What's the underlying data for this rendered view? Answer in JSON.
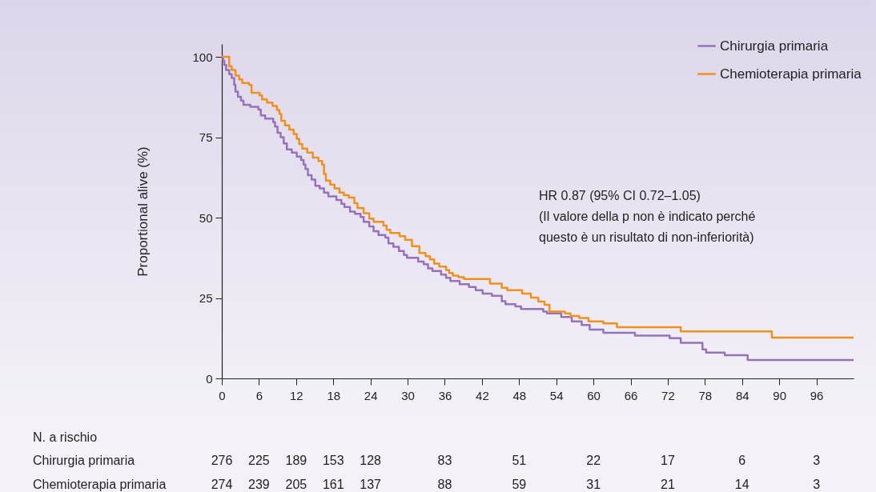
{
  "chart_data": [
    {
      "type": "step",
      "ylabel": "Proportional alive (%)",
      "xlim": [
        0,
        102
      ],
      "xticks": [
        0,
        6,
        12,
        18,
        24,
        30,
        36,
        42,
        48,
        54,
        60,
        66,
        72,
        78,
        84,
        90,
        96
      ],
      "ylim": [
        0,
        104
      ],
      "yticks": [
        0,
        25,
        50,
        75,
        100
      ],
      "legend": "top right",
      "line_style": "solid",
      "annotations": [
        "HR 0.87 (95% CI 0.72–1.05)\n(Il valore della p non è indicato perché\nquesto è un risultato di non-inferiorità)"
      ],
      "series": [
        {
          "name": "Chirurgia primaria",
          "color": "#9673b9",
          "x": [
            0,
            0.2,
            0.4,
            0.7,
            1.2,
            1.6,
            2.0,
            2.2,
            2.6,
            3.1,
            3.5,
            4.6,
            5.9,
            6.3,
            7.0,
            8.3,
            8.6,
            9.0,
            9.5,
            10.0,
            10.5,
            11.3,
            12.1,
            12.8,
            13.2,
            13.5,
            13.9,
            14.5,
            15.1,
            15.8,
            16.5,
            17.2,
            18.5,
            19.3,
            19.8,
            20.7,
            21.5,
            22.4,
            22.9,
            23.8,
            24.5,
            25.3,
            26.4,
            26.9,
            27.7,
            28.6,
            29.4,
            29.9,
            31.7,
            32.6,
            33.3,
            34.0,
            35.4,
            36.2,
            36.9,
            38.4,
            39.9,
            41.0,
            42.1,
            43.6,
            45.2,
            45.8,
            47.4,
            48.3,
            51.9,
            52.5,
            54.8,
            56.5,
            58.1,
            59.4,
            61.6,
            66.7,
            72.3,
            74.1,
            77.6,
            78.2,
            81.2,
            84.9,
            102
          ],
          "values": [
            100,
            98.8,
            97.5,
            95.9,
            94.6,
            93.4,
            91.3,
            89.2,
            87.6,
            86.4,
            85.1,
            84.5,
            83.6,
            81.8,
            80.8,
            79.7,
            78.3,
            76.4,
            75.0,
            73.1,
            71.2,
            70.2,
            69.0,
            67.9,
            66.5,
            65.1,
            63.2,
            61.8,
            59.9,
            59.1,
            57.8,
            56.6,
            55.5,
            54.3,
            53.3,
            51.9,
            51.2,
            50.2,
            48.7,
            47.3,
            45.8,
            44.6,
            43.8,
            42.0,
            40.9,
            39.6,
            38.4,
            37.5,
            36.3,
            35.5,
            34.2,
            33.4,
            32.3,
            31.3,
            30.3,
            29.3,
            28.4,
            27.4,
            26.4,
            25.7,
            24.0,
            23.1,
            22.4,
            21.6,
            20.8,
            20.2,
            19.1,
            17.7,
            16.6,
            15.2,
            14.2,
            13.3,
            12.5,
            11.1,
            9.0,
            8.0,
            7.2,
            5.7,
            5.7
          ]
        },
        {
          "name": "Chemioterapia primaria",
          "color": "#f0901e",
          "x": [
            0,
            1.2,
            1.6,
            2.2,
            2.8,
            3.3,
            4.4,
            4.8,
            6.1,
            6.5,
            7.3,
            8.2,
            8.9,
            9.3,
            9.6,
            10.2,
            10.9,
            11.6,
            12.1,
            12.5,
            13.0,
            13.8,
            14.7,
            15.6,
            16.2,
            16.5,
            16.8,
            17.5,
            18.2,
            19.0,
            19.7,
            20.5,
            21.4,
            21.9,
            22.9,
            23.8,
            24.5,
            26.1,
            26.6,
            27.2,
            28.7,
            29.6,
            30.7,
            31.9,
            32.9,
            33.6,
            34.3,
            35.1,
            36.2,
            36.7,
            37.3,
            38.2,
            39.1,
            43.3,
            45.2,
            46.1,
            48.5,
            49.9,
            51.1,
            52.1,
            52.9,
            55.4,
            56.3,
            57.7,
            59.2,
            61.6,
            63.8,
            74.1,
            88.8,
            102
          ],
          "values": [
            100,
            97.1,
            95.9,
            94.2,
            93.0,
            91.9,
            91.3,
            88.8,
            88.0,
            86.8,
            85.8,
            84.7,
            83.5,
            82.2,
            80.1,
            78.7,
            77.4,
            76.0,
            74.5,
            72.9,
            71.5,
            70.2,
            68.7,
            67.6,
            66.5,
            63.6,
            61.5,
            60.3,
            59.1,
            57.8,
            57.0,
            56.2,
            54.5,
            53.0,
            51.4,
            49.7,
            48.7,
            47.5,
            46.2,
            45.2,
            44.2,
            43.1,
            41.1,
            39.0,
            38.0,
            37.0,
            35.7,
            34.8,
            33.7,
            32.8,
            32.0,
            31.5,
            30.9,
            29.5,
            28.2,
            27.4,
            26.4,
            25.1,
            23.9,
            22.9,
            20.8,
            20.2,
            19.4,
            18.8,
            17.7,
            17.1,
            15.9,
            14.6,
            12.7,
            12.7
          ]
        }
      ]
    },
    {
      "type": "other",
      "title": "N. a rischio",
      "annotations": [
        "Chirurgia primaria",
        "276",
        "225",
        "189",
        "153",
        "128",
        "83",
        "51",
        "22",
        "17",
        "6",
        "3",
        "Chemioterapia primaria",
        "274",
        "239",
        "205",
        "161",
        "137",
        "88",
        "59",
        "31",
        "21",
        "14",
        "3"
      ]
    }
  ]
}
